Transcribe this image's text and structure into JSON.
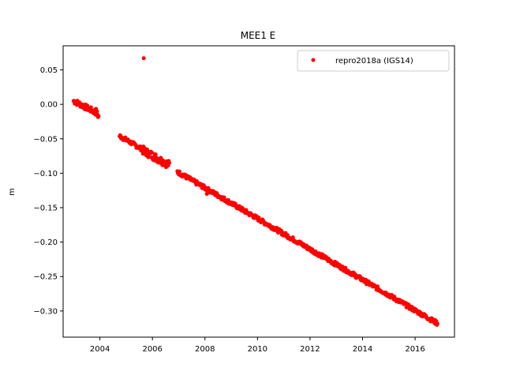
{
  "chart_data": {
    "type": "scatter",
    "title": "MEE1 E",
    "xlabel": "",
    "ylabel": "m",
    "xlim": [
      2002.6,
      2017.5
    ],
    "ylim": [
      -0.338,
      0.085
    ],
    "x_ticks": [
      2004,
      2006,
      2008,
      2010,
      2012,
      2014,
      2016
    ],
    "y_ticks": [
      0.05,
      0.0,
      -0.05,
      -0.1,
      -0.15,
      -0.2,
      -0.25,
      -0.3
    ],
    "y_tick_labels": [
      "0.05",
      "0.00",
      "−0.05",
      "−0.10",
      "−0.15",
      "−0.20",
      "−0.25",
      "−0.30"
    ],
    "grid": false,
    "legend_position": "top-right",
    "series": [
      {
        "name": "repro2018a (IGS14)",
        "color": "#ff0000",
        "marker": "dot",
        "segments": [
          {
            "x_start": 2003.0,
            "x_end": 2003.85,
            "y_start": 0.005,
            "y_end": -0.012,
            "spread": 0.004
          },
          {
            "x_start": 2003.85,
            "x_end": 2003.95,
            "y_start": -0.01,
            "y_end": -0.018,
            "spread": 0.004
          },
          {
            "x_start": 2004.75,
            "x_end": 2005.6,
            "y_start": -0.046,
            "y_end": -0.065,
            "spread": 0.003
          },
          {
            "x_start": 2005.6,
            "x_end": 2006.65,
            "y_start": -0.066,
            "y_end": -0.088,
            "spread": 0.006
          },
          {
            "x_start": 2006.95,
            "x_end": 2016.85,
            "y_start": -0.098,
            "y_end": -0.318,
            "spread": 0.003
          }
        ],
        "outliers": [
          {
            "x": 2005.67,
            "y": 0.067
          },
          {
            "x": 2008.07,
            "y": -0.13
          }
        ]
      }
    ]
  }
}
